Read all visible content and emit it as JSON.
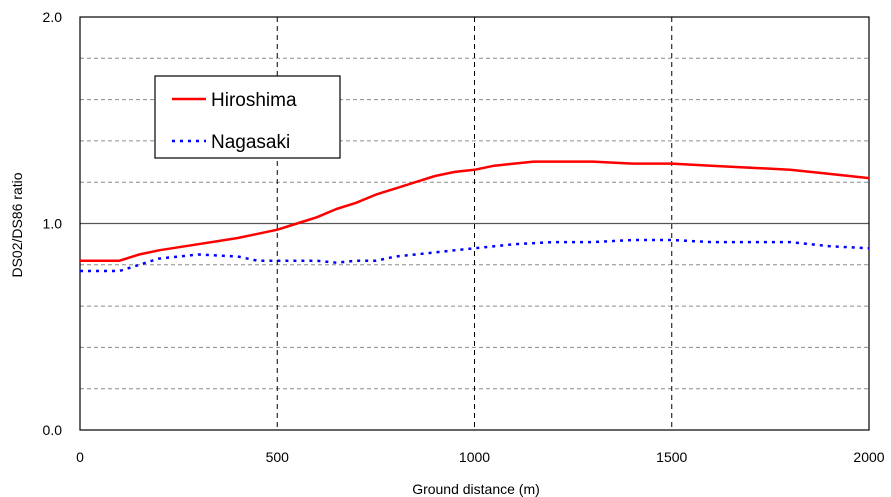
{
  "chart_data": {
    "type": "line",
    "xlabel": "Ground distance (m)",
    "ylabel": "DS02/DS86 ratio",
    "xlim": [
      0,
      2000
    ],
    "ylim": [
      0.0,
      2.0
    ],
    "x_ticks": [
      "0",
      "500",
      "1000",
      "1500",
      "2000"
    ],
    "y_ticks": [
      "0.0",
      "1.0",
      "2.0"
    ],
    "grid": "dashed gridlines; vertical at 500, 1000, 1500; horizontal every 0.2",
    "reference_line": 1.0,
    "legend": {
      "placement": "top-left",
      "entries": [
        "Hiroshima",
        "Nagasaki"
      ]
    },
    "series": [
      {
        "name": "Hiroshima",
        "color": "#ff0000",
        "style": "solid",
        "x": [
          0,
          100,
          150,
          200,
          300,
          400,
          500,
          550,
          600,
          650,
          700,
          750,
          800,
          850,
          900,
          950,
          1000,
          1050,
          1100,
          1150,
          1200,
          1250,
          1300,
          1400,
          1500,
          1600,
          1700,
          1800,
          1900,
          2000
        ],
        "y": [
          0.82,
          0.82,
          0.85,
          0.87,
          0.9,
          0.93,
          0.97,
          1.0,
          1.03,
          1.07,
          1.1,
          1.14,
          1.17,
          1.2,
          1.23,
          1.25,
          1.26,
          1.28,
          1.29,
          1.3,
          1.3,
          1.3,
          1.3,
          1.29,
          1.29,
          1.28,
          1.27,
          1.26,
          1.24,
          1.22
        ]
      },
      {
        "name": "Nagasaki",
        "color": "#0000ff",
        "style": "dotted",
        "x": [
          0,
          100,
          150,
          200,
          300,
          400,
          450,
          500,
          550,
          600,
          650,
          700,
          750,
          800,
          850,
          900,
          950,
          1000,
          1100,
          1200,
          1300,
          1400,
          1500,
          1600,
          1700,
          1800,
          1900,
          2000
        ],
        "y": [
          0.77,
          0.77,
          0.8,
          0.83,
          0.85,
          0.84,
          0.82,
          0.82,
          0.82,
          0.82,
          0.81,
          0.82,
          0.82,
          0.84,
          0.85,
          0.86,
          0.87,
          0.88,
          0.9,
          0.91,
          0.91,
          0.92,
          0.92,
          0.91,
          0.91,
          0.91,
          0.89,
          0.88
        ]
      }
    ]
  }
}
